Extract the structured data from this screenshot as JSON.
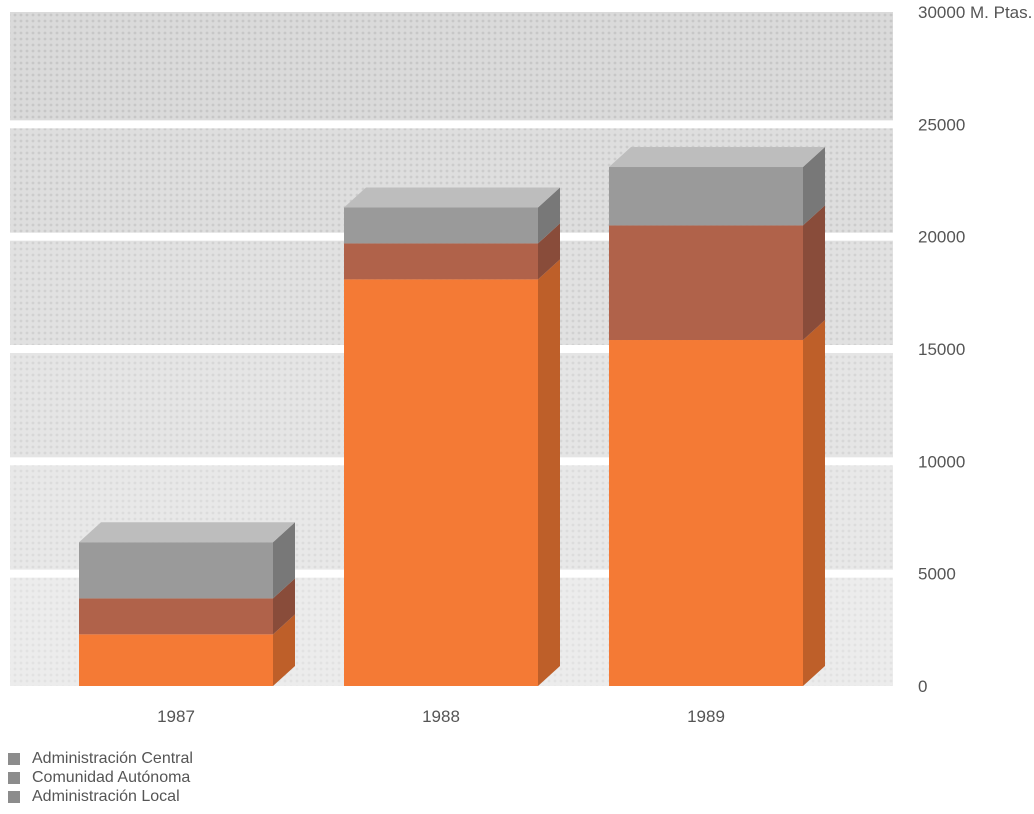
{
  "chart_data": {
    "type": "bar",
    "stacked": true,
    "categories": [
      "1987",
      "1988",
      "1989"
    ],
    "series": [
      {
        "name": "Administración Central",
        "values": [
          2300,
          18100,
          15400
        ],
        "color": "#f47a35"
      },
      {
        "name": "Comunidad Autónoma",
        "values": [
          1600,
          1600,
          5100
        ],
        "color": "#b0624a"
      },
      {
        "name": "Administración Local",
        "values": [
          2500,
          1600,
          2600
        ],
        "color": "#9a9a9a"
      }
    ],
    "ylim": [
      0,
      30000
    ],
    "yticks": [
      0,
      5000,
      10000,
      15000,
      20000,
      25000,
      30000
    ],
    "ytick_labels": [
      "0",
      "5000",
      "10000",
      "15000",
      "20000",
      "25000",
      "30000 M. Ptas."
    ],
    "grid": true,
    "legend_position": "bottom-left"
  },
  "legend": [
    {
      "label": "Administración Central"
    },
    {
      "label": "Comunidad Autónoma"
    },
    {
      "label": "Administración Local"
    }
  ]
}
